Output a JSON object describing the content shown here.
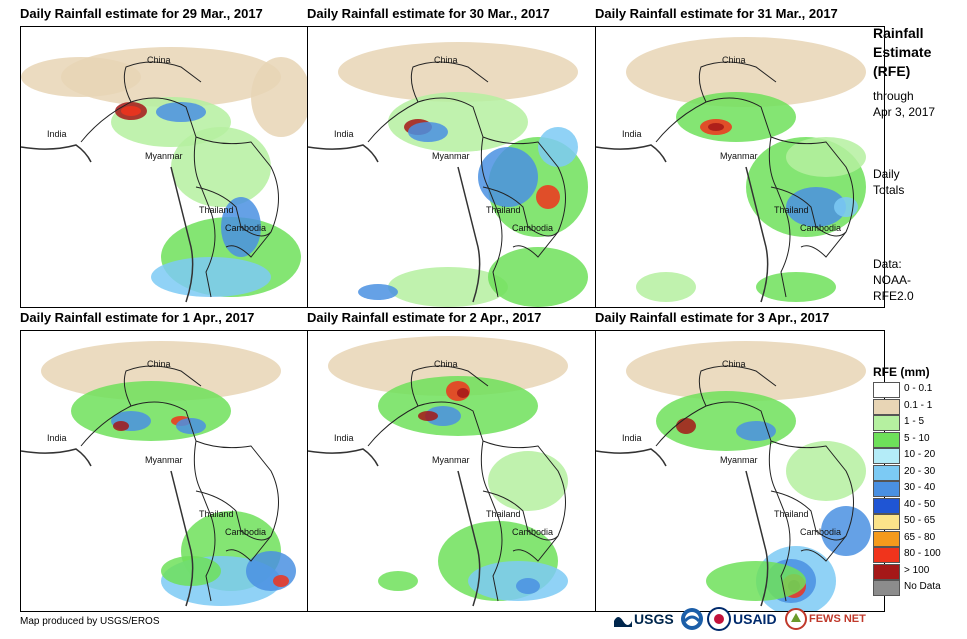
{
  "panels": [
    {
      "title": "Daily Rainfall estimate for 29 Mar., 2017"
    },
    {
      "title": "Daily Rainfall estimate for 30 Mar., 2017"
    },
    {
      "title": "Daily Rainfall estimate for 31 Mar., 2017"
    },
    {
      "title": "Daily Rainfall estimate for 1 Apr., 2017"
    },
    {
      "title": "Daily Rainfall estimate for 2 Apr., 2017"
    },
    {
      "title": "Daily Rainfall estimate for 3 Apr., 2017"
    }
  ],
  "map_labels": {
    "china": "China",
    "india": "India",
    "myanmar": "Myanmar",
    "thailand": "Thailand",
    "cambodia": "Cambodia"
  },
  "sidebar": {
    "title_line1": "Rainfall",
    "title_line2": "Estimate",
    "title_line3": "(RFE)",
    "through": "through",
    "date": "Apr 3, 2017",
    "daily": "Daily",
    "totals": "Totals",
    "data_label": "Data:",
    "data_src1": "NOAA-",
    "data_src2": "RFE2.0"
  },
  "legend": {
    "title": "RFE (mm)",
    "items": [
      {
        "label": "0 - 0.1",
        "color": "#ffffff"
      },
      {
        "label": "0.1 - 1",
        "color": "#e8d5b5"
      },
      {
        "label": "1 - 5",
        "color": "#b5f0a0"
      },
      {
        "label": "5 - 10",
        "color": "#6ee05a"
      },
      {
        "label": "10 - 20",
        "color": "#b4ecf8"
      },
      {
        "label": "20 - 30",
        "color": "#7ccaf4"
      },
      {
        "label": "30 - 40",
        "color": "#4a90e2"
      },
      {
        "label": "40 - 50",
        "color": "#1f55d4"
      },
      {
        "label": "50 - 65",
        "color": "#fbe38a"
      },
      {
        "label": "65 - 80",
        "color": "#f59a1c"
      },
      {
        "label": "80 - 100",
        "color": "#f0341c"
      },
      {
        "label": "> 100",
        "color": "#a51818"
      },
      {
        "label": "No Data",
        "color": "#8c8c8c"
      }
    ]
  },
  "footer": {
    "credit": "Map produced by USGS/EROS"
  },
  "logos": {
    "usgs": "USGS",
    "usaid": "USAID",
    "fewsnet": "FEWS NET"
  }
}
